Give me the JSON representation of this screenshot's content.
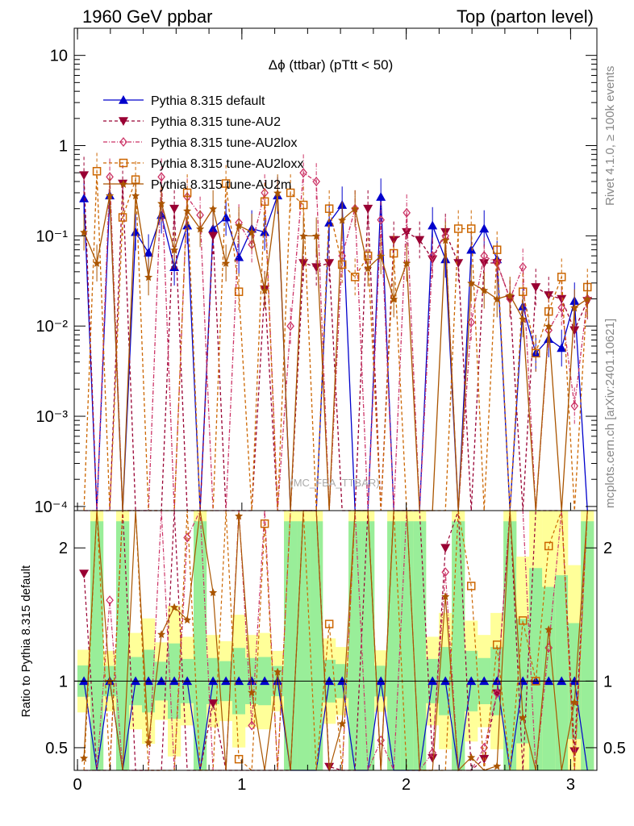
{
  "header": {
    "left": "1960 GeV ppbar",
    "right": "Top (parton level)"
  },
  "side_labels": {
    "rivet": "Rivet 4.1.0, ≥ 100k events",
    "mcplots": "mcplots.cern.ch [arXiv:2401.10621]"
  },
  "chart_data": {
    "type": "line",
    "title": "Δϕ (ttbar) (pTtt < 50)",
    "analysis_watermark": "(MC_FBA_TTBAR)",
    "xlabel": "",
    "ylabel_main": "",
    "ylabel_ratio": "Ratio to Pythia 8.315 default",
    "xlim": [
      -0.02,
      3.16
    ],
    "ylim_main": [
      9e-05,
      20
    ],
    "yscale_main": "log",
    "ylim_ratio": [
      0.33,
      2.28
    ],
    "x_ticks": [
      "0",
      "1",
      "2",
      "3"
    ],
    "y_ticks_main": [
      "10",
      "1",
      "10⁻¹",
      "10⁻²",
      "10⁻³",
      "10⁻⁴"
    ],
    "y_ticks_ratio": [
      "0.5",
      "1",
      "2"
    ],
    "legend": [
      "Pythia 8.315 default",
      "Pythia 8.315 tune-AU2",
      "Pythia 8.315 tune-AU2lox",
      "Pythia 8.315 tune-AU2loxx",
      "Pythia 8.315 tune-AU2m"
    ],
    "legend_position": "top-left",
    "x": [
      0.0393,
      0.1178,
      0.1963,
      0.2749,
      0.3534,
      0.432,
      0.5105,
      0.589,
      0.6676,
      0.7461,
      0.8247,
      0.9032,
      0.9817,
      1.0603,
      1.1388,
      1.2174,
      1.2959,
      1.3744,
      1.453,
      1.5315,
      1.6101,
      1.6886,
      1.7671,
      1.8457,
      1.9242,
      2.0028,
      2.0813,
      2.1598,
      2.2384,
      2.3169,
      2.3955,
      2.474,
      2.5525,
      2.6311,
      2.7096,
      2.7882,
      2.8667,
      2.9452,
      3.0238,
      3.1023
    ],
    "series": [
      {
        "name": "Pythia 8.315 default",
        "color": "#0000cc",
        "marker": "triangle-up",
        "dash": "solid",
        "values": [
          0.26,
          0,
          0.28,
          0,
          0.11,
          0.065,
          0.17,
          0.045,
          0.13,
          0,
          0.12,
          0.16,
          0.058,
          0.12,
          0.11,
          0.28,
          0,
          0,
          0,
          0.14,
          0.22,
          0,
          0,
          0.27,
          0,
          0,
          0,
          0.13,
          0.055,
          0,
          0.07,
          0.12,
          0.055,
          0,
          0.0165,
          0.005,
          0.0072,
          0.0057,
          0.019,
          0
        ]
      },
      {
        "name": "Pythia 8.315 tune-AU2",
        "color": "#990033",
        "marker": "triangle-down",
        "dash": "dashed",
        "values": [
          0.47,
          0,
          0,
          0.38,
          0,
          0,
          0,
          0.2,
          0,
          0,
          0.1,
          0,
          0,
          0,
          0.0255,
          0,
          0,
          0.05,
          0.045,
          0.05,
          0,
          0,
          0.2,
          0,
          0.09,
          0.11,
          0.09,
          0.055,
          0.11,
          0.05,
          0,
          0.05,
          0.05,
          0.02,
          0,
          0.027,
          0.022,
          0.02,
          0.009,
          0.019
        ]
      },
      {
        "name": "Pythia 8.315 tune-AU2lox",
        "color": "#cc3366",
        "marker": "diamond",
        "dash": "dashdot",
        "values": [
          0,
          0,
          0.45,
          0,
          0,
          0,
          0.45,
          0,
          0.27,
          0.17,
          0,
          0,
          0.14,
          0.08,
          0.3,
          0,
          0.01,
          0.5,
          0.4,
          0,
          0.06,
          0.2,
          0,
          0.15,
          0,
          0.18,
          0,
          0.06,
          0.1,
          0,
          0.011,
          0.06,
          0.05,
          0.02,
          0.045,
          0,
          0.009,
          0.016,
          0.0013,
          0.02
        ]
      },
      {
        "name": "Pythia 8.315 tune-AU2loxx",
        "color": "#cc6600",
        "marker": "open-square",
        "dash": "dashed",
        "values": [
          0,
          0.52,
          0,
          0.16,
          0.42,
          0,
          0,
          0,
          0.3,
          0,
          0,
          0.38,
          0.024,
          0,
          0.24,
          0,
          0.3,
          0.22,
          0,
          0.2,
          0.048,
          0.035,
          0.06,
          0,
          0.064,
          0,
          0,
          0,
          0,
          0.12,
          0.12,
          0,
          0.07,
          0,
          0.024,
          0.005,
          0.0145,
          0.035,
          0,
          0.027
        ]
      },
      {
        "name": "Pythia 8.315 tune-AU2m",
        "color": "#aa5500",
        "marker": "star",
        "dash": "solid",
        "values": [
          0.11,
          0.05,
          0.28,
          0,
          0.28,
          0.035,
          0.23,
          0.07,
          0.19,
          0.12,
          0.2,
          0.05,
          0.13,
          0.11,
          0.025,
          0.3,
          0,
          0.1,
          0.1,
          0,
          0.15,
          0.2,
          0.044,
          0.06,
          0.02,
          0.05,
          0,
          0,
          0.09,
          0,
          0.03,
          0.025,
          0.02,
          0.022,
          0.012,
          0,
          0.01,
          0,
          0.016,
          0.02
        ]
      }
    ]
  }
}
